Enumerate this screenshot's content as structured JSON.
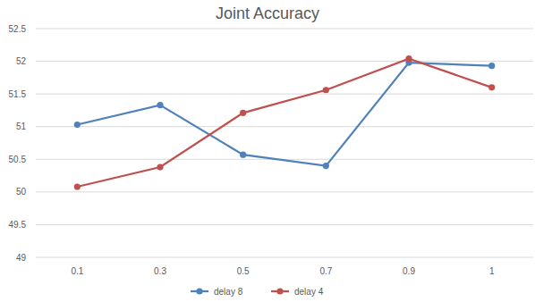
{
  "chart_data": {
    "type": "line",
    "title": "Joint Accuracy",
    "categories": [
      "0.1",
      "0.3",
      "0.5",
      "0.7",
      "0.9",
      "1"
    ],
    "series": [
      {
        "name": "delay 8",
        "color": "#4f81bd",
        "marker": "circle",
        "values": [
          51.03,
          51.33,
          50.57,
          50.4,
          51.98,
          51.93
        ]
      },
      {
        "name": "delay 4",
        "color": "#c0504d",
        "marker": "circle",
        "values": [
          50.08,
          50.38,
          51.21,
          51.56,
          52.04,
          51.6
        ]
      }
    ],
    "ylim": [
      49,
      52.5
    ],
    "yticks": [
      49,
      49.5,
      50,
      50.5,
      51,
      51.5,
      52,
      52.5
    ],
    "grid": true,
    "legend": "bottom"
  }
}
